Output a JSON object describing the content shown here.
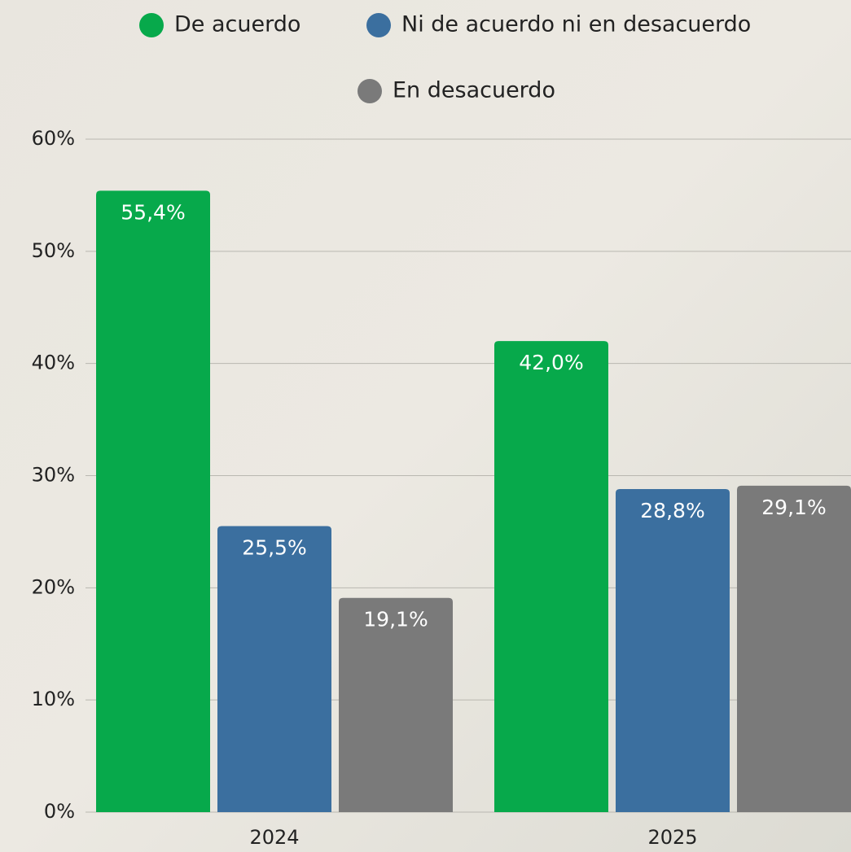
{
  "chart_data": {
    "type": "bar",
    "categories": [
      "2024",
      "2025"
    ],
    "series": [
      {
        "name": "De acuerdo",
        "color": "#07a94b",
        "values": [
          55.4,
          42.0
        ],
        "value_labels": [
          "55,4%",
          "42,0%"
        ]
      },
      {
        "name": "Ni de acuerdo ni en desacuerdo",
        "color": "#3b6f9f",
        "values": [
          25.5,
          28.8
        ],
        "value_labels": [
          "25,5%",
          "28,8%"
        ]
      },
      {
        "name": "En desacuerdo",
        "color": "#7a7a7a",
        "values": [
          19.1,
          29.1
        ],
        "value_labels": [
          "19,1%",
          "29,1%"
        ]
      }
    ],
    "ylim": [
      0,
      60
    ],
    "yticks": [
      {
        "value": 0,
        "label": "0%"
      },
      {
        "value": 10,
        "label": "10%"
      },
      {
        "value": 20,
        "label": "20%"
      },
      {
        "value": 30,
        "label": "30%"
      },
      {
        "value": 40,
        "label": "40%"
      },
      {
        "value": 50,
        "label": "50%"
      },
      {
        "value": 60,
        "label": "60%"
      }
    ],
    "grid": true
  }
}
